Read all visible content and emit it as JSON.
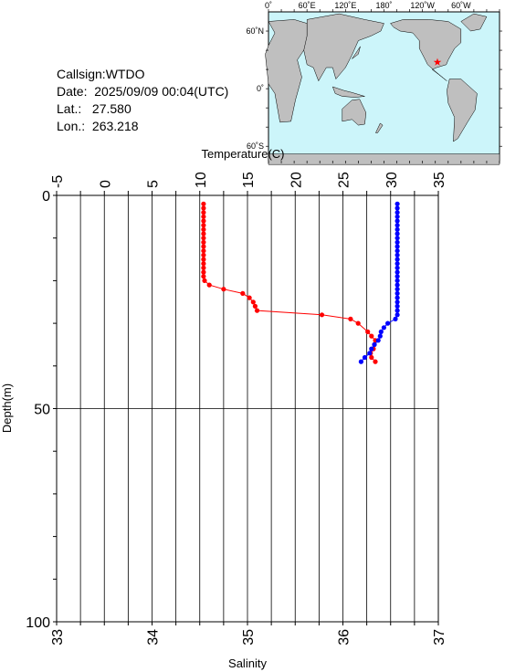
{
  "station": {
    "callsign_label": "Callsign:",
    "callsign": "WTDO",
    "date_label": "Date:",
    "date": "2025/09/09 00:04(UTC)",
    "lat_label": "Lat.:",
    "lat": "27.580",
    "lon_label": "Lon.:",
    "lon": "263.218"
  },
  "map": {
    "top_labels": [
      "0˚",
      "60˚E",
      "120˚E",
      "180˚",
      "120˚W",
      "60˚W"
    ],
    "left_labels": [
      "60˚N",
      "0˚",
      "60˚S"
    ],
    "marker_color": "#ff0000",
    "ocean_color": "#ccf5fa",
    "land_color": "#bfbfbf"
  },
  "chart_data": {
    "type": "scatter",
    "title": "",
    "top_axis": {
      "label": "Temperature(C)",
      "ticks": [
        "-5",
        "0",
        "5",
        "10",
        "15",
        "20",
        "25",
        "30",
        "35"
      ],
      "range": [
        -5,
        35
      ]
    },
    "bottom_axis": {
      "label": "Salinity",
      "ticks": [
        "33",
        "34",
        "35",
        "36",
        "37"
      ],
      "range": [
        33,
        37
      ]
    },
    "y_axis": {
      "label": "Depth(m)",
      "ticks": [
        "0",
        "50",
        "100"
      ],
      "range": [
        0,
        100
      ],
      "inverted": true
    },
    "grid": true,
    "series": [
      {
        "color": "#ff0000",
        "axis": "top",
        "line": true,
        "points": [
          [
            10.4,
            2
          ],
          [
            10.4,
            3
          ],
          [
            10.4,
            4
          ],
          [
            10.4,
            5
          ],
          [
            10.4,
            6
          ],
          [
            10.4,
            7
          ],
          [
            10.4,
            8
          ],
          [
            10.4,
            9
          ],
          [
            10.4,
            10
          ],
          [
            10.4,
            11
          ],
          [
            10.4,
            12
          ],
          [
            10.4,
            13
          ],
          [
            10.4,
            14
          ],
          [
            10.4,
            15
          ],
          [
            10.4,
            16
          ],
          [
            10.4,
            17
          ],
          [
            10.4,
            18
          ],
          [
            10.4,
            19
          ],
          [
            10.5,
            20
          ],
          [
            11.0,
            21
          ],
          [
            12.5,
            22
          ],
          [
            14.5,
            23
          ],
          [
            15.2,
            24
          ],
          [
            15.6,
            25
          ],
          [
            15.8,
            26
          ],
          [
            16.0,
            27
          ],
          [
            22.8,
            28
          ],
          [
            25.8,
            29
          ],
          [
            26.6,
            30
          ],
          [
            27.6,
            32
          ],
          [
            28.0,
            33
          ],
          [
            28.4,
            34
          ],
          [
            28.3,
            35
          ],
          [
            28.2,
            36
          ],
          [
            27.9,
            37
          ],
          [
            28.0,
            38
          ],
          [
            28.4,
            39
          ]
        ]
      },
      {
        "color": "#0000ff",
        "axis": "bottom",
        "line": true,
        "points": [
          [
            36.57,
            2
          ],
          [
            36.57,
            3
          ],
          [
            36.57,
            4
          ],
          [
            36.57,
            5
          ],
          [
            36.57,
            6
          ],
          [
            36.57,
            7
          ],
          [
            36.57,
            8
          ],
          [
            36.57,
            9
          ],
          [
            36.57,
            10
          ],
          [
            36.57,
            11
          ],
          [
            36.57,
            12
          ],
          [
            36.57,
            13
          ],
          [
            36.57,
            14
          ],
          [
            36.57,
            15
          ],
          [
            36.57,
            16
          ],
          [
            36.57,
            17
          ],
          [
            36.57,
            18
          ],
          [
            36.57,
            19
          ],
          [
            36.57,
            20
          ],
          [
            36.57,
            21
          ],
          [
            36.57,
            22
          ],
          [
            36.57,
            23
          ],
          [
            36.57,
            24
          ],
          [
            36.57,
            25
          ],
          [
            36.57,
            26
          ],
          [
            36.57,
            27
          ],
          [
            36.57,
            28
          ],
          [
            36.55,
            29
          ],
          [
            36.47,
            30
          ],
          [
            36.43,
            31
          ],
          [
            36.4,
            32
          ],
          [
            36.39,
            33
          ],
          [
            36.37,
            34
          ],
          [
            36.33,
            35
          ],
          [
            36.3,
            36
          ],
          [
            36.28,
            37
          ],
          [
            36.23,
            38
          ],
          [
            36.19,
            39
          ]
        ]
      }
    ]
  }
}
